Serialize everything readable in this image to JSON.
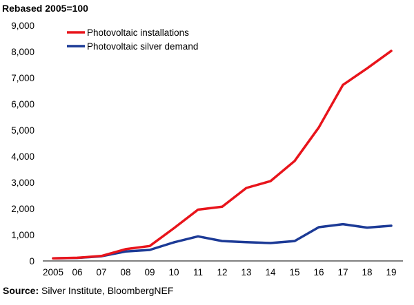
{
  "chart_data": {
    "type": "line",
    "title": "Rebased 2005=100",
    "source_label": "Source:",
    "source_text": "Silver Institute, BloombergNEF",
    "xlabel": "",
    "ylabel": "",
    "x": [
      "2005",
      "06",
      "07",
      "08",
      "09",
      "10",
      "11",
      "12",
      "13",
      "14",
      "15",
      "16",
      "17",
      "18",
      "19"
    ],
    "ylim": [
      0,
      9000
    ],
    "yticks": [
      0,
      1000,
      2000,
      3000,
      4000,
      5000,
      6000,
      7000,
      8000,
      9000
    ],
    "ytick_labels": [
      "0",
      "1,000",
      "2,000",
      "3,000",
      "4,000",
      "5,000",
      "6,000",
      "7,000",
      "8,000",
      "9,000"
    ],
    "grid": false,
    "legend_position": "top-left",
    "series": [
      {
        "name": "Photovoltaic installations",
        "color": "#e8141b",
        "values": [
          100,
          120,
          190,
          450,
          570,
          1250,
          1960,
          2070,
          2790,
          3050,
          3820,
          5100,
          6730,
          7360,
          8030
        ]
      },
      {
        "name": "Photovoltaic silver demand",
        "color": "#1c3a96",
        "values": [
          100,
          115,
          180,
          360,
          420,
          710,
          940,
          760,
          715,
          685,
          760,
          1290,
          1405,
          1275,
          1345
        ]
      }
    ]
  }
}
